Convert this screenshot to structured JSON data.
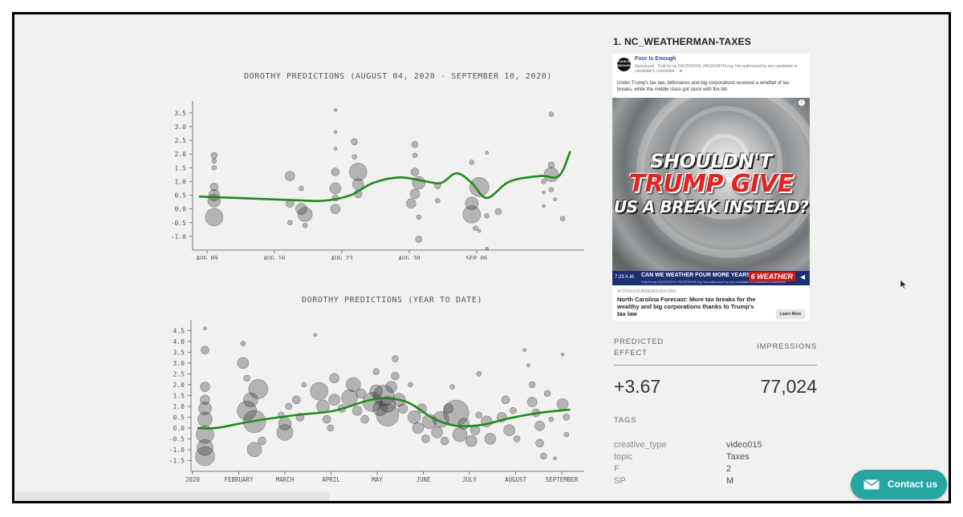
{
  "charts": [
    {
      "title": "DOROTHY PREDICTIONS (AUGUST 04, 2020 - SEPTEMBER 10, 2020)",
      "ymin": -1.5,
      "ymax": 3.7,
      "yticks": [
        "3.5",
        "3.0",
        "2.5",
        "2.0",
        "1.5",
        "1.0",
        "0.5",
        "0.0",
        "-0.5",
        "-1.0"
      ],
      "xticks": [
        "AUG 09",
        "AUG 16",
        "AUG 23",
        "AUG 30",
        "SEP 06"
      ],
      "line_color": "#1f8a1f"
    },
    {
      "title": "DOROTHY PREDICTIONS (YEAR TO DATE)",
      "ymin": -2.0,
      "ymax": 4.7,
      "yticks": [
        "4.5",
        "4.0",
        "3.5",
        "3.0",
        "2.5",
        "2.0",
        "1.5",
        "1.0",
        "0.5",
        "0.0",
        "-0.5",
        "-1.0",
        "-1.5"
      ],
      "xticks": [
        "2020",
        "FEBRUARY",
        "MARCH",
        "APRIL",
        "MAY",
        "JUNE",
        "JULY",
        "AUGUST",
        "SEPTEMBER"
      ],
      "line_color": "#1f8a1f"
    }
  ],
  "chart_data": [
    {
      "type": "scatter",
      "title": "DOROTHY PREDICTIONS (AUGUST 04, 2020 - SEPTEMBER 10, 2020)",
      "x_ticks": [
        "AUG 09",
        "AUG 16",
        "AUG 23",
        "AUG 30",
        "SEP 06"
      ],
      "y_ticks": [
        3.5,
        3.0,
        2.5,
        2.0,
        1.5,
        1.0,
        0.5,
        0.0,
        -0.5,
        -1.0
      ],
      "trend": {
        "x": [
          0,
          0.1,
          0.25,
          0.33,
          0.4,
          0.46,
          0.53,
          0.6,
          0.64,
          0.68,
          0.72,
          0.76,
          0.82,
          0.9,
          0.95,
          0.98
        ],
        "y": [
          0.45,
          0.4,
          0.32,
          0.3,
          0.5,
          0.95,
          1.15,
          1.0,
          0.95,
          1.3,
          0.95,
          0.4,
          1.0,
          1.2,
          1.2,
          2.1
        ]
      },
      "points": [
        {
          "x": 0.04,
          "y": 1.95,
          "s": 4
        },
        {
          "x": 0.04,
          "y": 1.75,
          "s": 3
        },
        {
          "x": 0.04,
          "y": 1.5,
          "s": 3
        },
        {
          "x": 0.04,
          "y": 0.8,
          "s": 5
        },
        {
          "x": 0.04,
          "y": 0.5,
          "s": 7
        },
        {
          "x": 0.04,
          "y": 0.3,
          "s": 8
        },
        {
          "x": 0.04,
          "y": -0.3,
          "s": 11
        },
        {
          "x": 0.24,
          "y": 1.2,
          "s": 6
        },
        {
          "x": 0.24,
          "y": 0.2,
          "s": 5
        },
        {
          "x": 0.24,
          "y": -0.5,
          "s": 3
        },
        {
          "x": 0.27,
          "y": 0.75,
          "s": 3
        },
        {
          "x": 0.27,
          "y": 0.0,
          "s": 7
        },
        {
          "x": 0.28,
          "y": -0.2,
          "s": 9
        },
        {
          "x": 0.28,
          "y": -0.6,
          "s": 3
        },
        {
          "x": 0.36,
          "y": 3.6,
          "s": 2
        },
        {
          "x": 0.36,
          "y": 2.8,
          "s": 2
        },
        {
          "x": 0.36,
          "y": 2.2,
          "s": 2
        },
        {
          "x": 0.36,
          "y": 1.35,
          "s": 5
        },
        {
          "x": 0.36,
          "y": 0.75,
          "s": 7
        },
        {
          "x": 0.36,
          "y": 0.4,
          "s": 4
        },
        {
          "x": 0.36,
          "y": 0.0,
          "s": 6
        },
        {
          "x": 0.41,
          "y": 2.45,
          "s": 4
        },
        {
          "x": 0.41,
          "y": 1.9,
          "s": 3
        },
        {
          "x": 0.42,
          "y": 1.35,
          "s": 11
        },
        {
          "x": 0.42,
          "y": 0.9,
          "s": 7
        },
        {
          "x": 0.42,
          "y": 0.55,
          "s": 5
        },
        {
          "x": 0.57,
          "y": 2.35,
          "s": 4
        },
        {
          "x": 0.57,
          "y": 1.95,
          "s": 3
        },
        {
          "x": 0.57,
          "y": 1.35,
          "s": 5
        },
        {
          "x": 0.58,
          "y": 0.95,
          "s": 8
        },
        {
          "x": 0.57,
          "y": 0.55,
          "s": 6
        },
        {
          "x": 0.56,
          "y": 0.2,
          "s": 6
        },
        {
          "x": 0.58,
          "y": -0.3,
          "s": 3
        },
        {
          "x": 0.58,
          "y": -1.1,
          "s": 4
        },
        {
          "x": 0.63,
          "y": 0.85,
          "s": 4
        },
        {
          "x": 0.63,
          "y": 0.3,
          "s": 3
        },
        {
          "x": 0.72,
          "y": 1.7,
          "s": 3
        },
        {
          "x": 0.72,
          "y": 0.2,
          "s": 8
        },
        {
          "x": 0.72,
          "y": -0.2,
          "s": 11
        },
        {
          "x": 0.74,
          "y": 0.8,
          "s": 12
        },
        {
          "x": 0.73,
          "y": -0.7,
          "s": 3
        },
        {
          "x": 0.74,
          "y": -0.8,
          "s": 2
        },
        {
          "x": 0.76,
          "y": 2.05,
          "s": 2
        },
        {
          "x": 0.76,
          "y": -0.25,
          "s": 3
        },
        {
          "x": 0.76,
          "y": -1.45,
          "s": 2
        },
        {
          "x": 0.79,
          "y": -0.1,
          "s": 4
        },
        {
          "x": 0.91,
          "y": 1.0,
          "s": 3
        },
        {
          "x": 0.91,
          "y": 0.6,
          "s": 2
        },
        {
          "x": 0.91,
          "y": 0.1,
          "s": 2
        },
        {
          "x": 0.93,
          "y": 3.45,
          "s": 3
        },
        {
          "x": 0.93,
          "y": 1.6,
          "s": 4
        },
        {
          "x": 0.93,
          "y": 1.25,
          "s": 9
        },
        {
          "x": 0.93,
          "y": 0.7,
          "s": 3
        },
        {
          "x": 0.94,
          "y": 0.35,
          "s": 2
        },
        {
          "x": 0.96,
          "y": -0.35,
          "s": 3
        }
      ]
    },
    {
      "type": "scatter",
      "title": "DOROTHY PREDICTIONS (YEAR TO DATE)",
      "x_ticks": [
        "2020",
        "FEBRUARY",
        "MARCH",
        "APRIL",
        "MAY",
        "JUNE",
        "JULY",
        "AUGUST",
        "SEPTEMBER"
      ],
      "y_ticks": [
        4.5,
        4.0,
        3.5,
        3.0,
        2.5,
        2.0,
        1.5,
        1.0,
        0.5,
        0.0,
        -0.5,
        -1.0,
        -1.5
      ],
      "trend": {
        "x": [
          0,
          0.05,
          0.14,
          0.26,
          0.36,
          0.47,
          0.55,
          0.62,
          0.68,
          0.75,
          0.82,
          0.9,
          0.98
        ],
        "y": [
          0.0,
          0.0,
          0.3,
          0.6,
          0.8,
          1.35,
          1.2,
          0.45,
          0.1,
          0.15,
          0.45,
          0.7,
          0.85
        ]
      },
      "points": [
        {
          "x": 0.02,
          "y": 4.6,
          "s": 2
        },
        {
          "x": 0.02,
          "y": 3.6,
          "s": 5
        },
        {
          "x": 0.02,
          "y": 1.9,
          "s": 6
        },
        {
          "x": 0.02,
          "y": 1.3,
          "s": 6
        },
        {
          "x": 0.02,
          "y": 0.9,
          "s": 8
        },
        {
          "x": 0.02,
          "y": 0.4,
          "s": 9
        },
        {
          "x": 0.02,
          "y": -0.3,
          "s": 11
        },
        {
          "x": 0.02,
          "y": -0.9,
          "s": 10
        },
        {
          "x": 0.02,
          "y": -1.3,
          "s": 12
        },
        {
          "x": 0.12,
          "y": 3.9,
          "s": 3
        },
        {
          "x": 0.12,
          "y": 3.0,
          "s": 7
        },
        {
          "x": 0.13,
          "y": 2.3,
          "s": 4
        },
        {
          "x": 0.14,
          "y": 1.3,
          "s": 9
        },
        {
          "x": 0.13,
          "y": 0.8,
          "s": 12
        },
        {
          "x": 0.16,
          "y": 1.8,
          "s": 12
        },
        {
          "x": 0.15,
          "y": 0.3,
          "s": 14
        },
        {
          "x": 0.15,
          "y": -1.0,
          "s": 9
        },
        {
          "x": 0.17,
          "y": -0.6,
          "s": 5
        },
        {
          "x": 0.22,
          "y": 0.6,
          "s": 4
        },
        {
          "x": 0.23,
          "y": 0.2,
          "s": 8
        },
        {
          "x": 0.23,
          "y": -0.2,
          "s": 10
        },
        {
          "x": 0.24,
          "y": 1.0,
          "s": 4
        },
        {
          "x": 0.26,
          "y": 1.3,
          "s": 5
        },
        {
          "x": 0.27,
          "y": 0.5,
          "s": 5
        },
        {
          "x": 0.28,
          "y": 2.0,
          "s": 3
        },
        {
          "x": 0.31,
          "y": 4.3,
          "s": 2
        },
        {
          "x": 0.32,
          "y": 1.7,
          "s": 11
        },
        {
          "x": 0.33,
          "y": 1.0,
          "s": 8
        },
        {
          "x": 0.34,
          "y": 0.4,
          "s": 5
        },
        {
          "x": 0.35,
          "y": 0.0,
          "s": 4
        },
        {
          "x": 0.36,
          "y": 2.3,
          "s": 6
        },
        {
          "x": 0.36,
          "y": 1.3,
          "s": 7
        },
        {
          "x": 0.38,
          "y": 0.9,
          "s": 5
        },
        {
          "x": 0.4,
          "y": 1.4,
          "s": 10
        },
        {
          "x": 0.41,
          "y": 2.0,
          "s": 9
        },
        {
          "x": 0.42,
          "y": 0.8,
          "s": 6
        },
        {
          "x": 0.43,
          "y": 1.6,
          "s": 6
        },
        {
          "x": 0.44,
          "y": 0.4,
          "s": 5
        },
        {
          "x": 0.46,
          "y": 1.2,
          "s": 12
        },
        {
          "x": 0.47,
          "y": 1.7,
          "s": 8
        },
        {
          "x": 0.47,
          "y": 2.6,
          "s": 4
        },
        {
          "x": 0.48,
          "y": 0.9,
          "s": 9
        },
        {
          "x": 0.49,
          "y": 1.5,
          "s": 13
        },
        {
          "x": 0.5,
          "y": 1.1,
          "s": 10
        },
        {
          "x": 0.5,
          "y": 0.6,
          "s": 14
        },
        {
          "x": 0.51,
          "y": 1.9,
          "s": 7
        },
        {
          "x": 0.52,
          "y": 3.2,
          "s": 4
        },
        {
          "x": 0.52,
          "y": 2.4,
          "s": 5
        },
        {
          "x": 0.53,
          "y": 1.3,
          "s": 8
        },
        {
          "x": 0.54,
          "y": 0.9,
          "s": 6
        },
        {
          "x": 0.56,
          "y": 2.0,
          "s": 3
        },
        {
          "x": 0.57,
          "y": 0.5,
          "s": 8
        },
        {
          "x": 0.58,
          "y": 0.0,
          "s": 7
        },
        {
          "x": 0.59,
          "y": 0.9,
          "s": 6
        },
        {
          "x": 0.6,
          "y": -0.5,
          "s": 5
        },
        {
          "x": 0.61,
          "y": 0.3,
          "s": 9
        },
        {
          "x": 0.63,
          "y": -0.2,
          "s": 7
        },
        {
          "x": 0.64,
          "y": 0.4,
          "s": 10
        },
        {
          "x": 0.65,
          "y": -0.6,
          "s": 5
        },
        {
          "x": 0.66,
          "y": 0.9,
          "s": 6
        },
        {
          "x": 0.67,
          "y": 1.9,
          "s": 3
        },
        {
          "x": 0.68,
          "y": 0.7,
          "s": 16
        },
        {
          "x": 0.69,
          "y": -0.3,
          "s": 9
        },
        {
          "x": 0.7,
          "y": 0.2,
          "s": 7
        },
        {
          "x": 0.72,
          "y": -0.6,
          "s": 7
        },
        {
          "x": 0.73,
          "y": -0.1,
          "s": 6
        },
        {
          "x": 0.74,
          "y": 0.6,
          "s": 4
        },
        {
          "x": 0.74,
          "y": 2.5,
          "s": 3
        },
        {
          "x": 0.76,
          "y": 0.3,
          "s": 7
        },
        {
          "x": 0.77,
          "y": -0.5,
          "s": 7
        },
        {
          "x": 0.8,
          "y": 0.5,
          "s": 6
        },
        {
          "x": 0.81,
          "y": 1.3,
          "s": 5
        },
        {
          "x": 0.82,
          "y": -0.1,
          "s": 7
        },
        {
          "x": 0.83,
          "y": 0.8,
          "s": 4
        },
        {
          "x": 0.84,
          "y": -0.5,
          "s": 4
        },
        {
          "x": 0.86,
          "y": 3.6,
          "s": 2
        },
        {
          "x": 0.87,
          "y": 2.9,
          "s": 2
        },
        {
          "x": 0.88,
          "y": 2.0,
          "s": 4
        },
        {
          "x": 0.88,
          "y": 1.2,
          "s": 6
        },
        {
          "x": 0.89,
          "y": 0.7,
          "s": 5
        },
        {
          "x": 0.9,
          "y": 0.1,
          "s": 6
        },
        {
          "x": 0.9,
          "y": -0.7,
          "s": 5
        },
        {
          "x": 0.91,
          "y": -1.3,
          "s": 4
        },
        {
          "x": 0.92,
          "y": 1.6,
          "s": 4
        },
        {
          "x": 0.93,
          "y": 0.4,
          "s": 3
        },
        {
          "x": 0.94,
          "y": -1.4,
          "s": 2
        },
        {
          "x": 0.96,
          "y": 3.4,
          "s": 2
        },
        {
          "x": 0.96,
          "y": 1.1,
          "s": 7
        },
        {
          "x": 0.97,
          "y": 0.5,
          "s": 4
        },
        {
          "x": 0.97,
          "y": -0.3,
          "s": 3
        }
      ]
    }
  ],
  "ad": {
    "title": "1. NC_WEATHERMAN-TAXES",
    "page_name": "Four Is Enough",
    "logo_text": "FOUR IS ENOUGH",
    "sponsored": "Sponsored · Paid for by PACRONYM, PACRONYM.org. Not authorized by any candidate or candidate's committee. · ⊕",
    "body": "Under Trump's tax law, billionaires and big corporations received a windfall of tax breaks, while the middle class got stuck with the bill.",
    "headline_1": "SHOULDN'T",
    "headline_2": "TRUMP GIVE",
    "headline_3": "US A BREAK INSTEAD?",
    "news_time": "7:23 A.M.",
    "news_text": "CAN WE WEATHER FOUR MORE YEARS?",
    "news_logo": "6 WEATHER",
    "news_sub": "Paid for by PACRONYM, PACRONYM.org. Not authorized by any candidate or candidate's committee.",
    "domain": "ACTION.FOURISENOUGH.ORG",
    "link_title": "North Carolina Forecast: More tax breaks for the wealthy and big corporations thanks to Trump's tax law",
    "learn_more": "Learn More"
  },
  "metrics": {
    "predicted_label": "PREDICTED EFFECT",
    "impressions_label": "IMPRESSIONS",
    "predicted_value": "+3.67",
    "impressions_value": "77,024"
  },
  "tags": {
    "label": "TAGS",
    "rows": [
      {
        "key": "creative_type",
        "value": "video015"
      },
      {
        "key": "topic",
        "value": "Taxes"
      },
      {
        "key": "F",
        "value": "2"
      },
      {
        "key": "SP",
        "value": "M"
      }
    ]
  },
  "contact": {
    "label": "Contact us",
    "color": "#27a5a5"
  }
}
